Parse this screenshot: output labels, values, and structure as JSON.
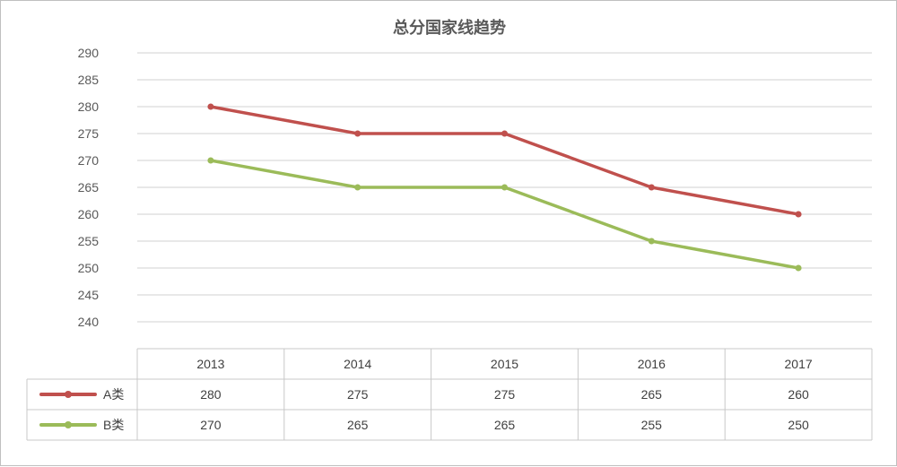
{
  "chart_data": {
    "type": "line",
    "title": "总分国家线趋势",
    "categories": [
      "2013",
      "2014",
      "2015",
      "2016",
      "2017"
    ],
    "series": [
      {
        "name": "A类",
        "values": [
          280,
          275,
          275,
          265,
          260
        ],
        "color": "#c0504d"
      },
      {
        "name": "B类",
        "values": [
          270,
          265,
          265,
          255,
          250
        ],
        "color": "#9bbb59"
      }
    ],
    "ylim": [
      240,
      290
    ],
    "ytick_step": 5,
    "yticks": [
      "290",
      "285",
      "280",
      "275",
      "270",
      "265",
      "260",
      "255",
      "250",
      "245",
      "240"
    ],
    "grid": true,
    "data_table": true,
    "xlabel": "",
    "ylabel": ""
  }
}
